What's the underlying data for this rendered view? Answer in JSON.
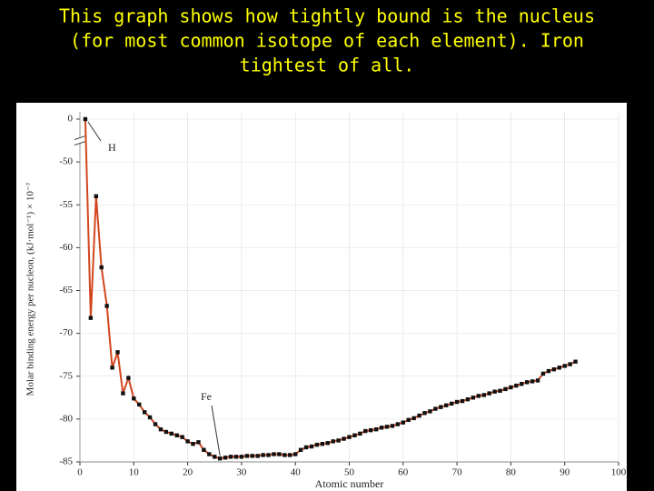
{
  "title_lines": [
    "This graph shows how tightly bound is the nucleus",
    "(for most common isotope of each element). Iron",
    "tightest of all."
  ],
  "chart_data": {
    "type": "line",
    "ylabel": "Molar binding energy per nucleon, (kJ·mol⁻¹) × 10⁻⁷",
    "xlabel": "Atomic number",
    "annotations": [
      "H",
      "Fe"
    ],
    "x": [
      1,
      2,
      3,
      4,
      5,
      6,
      7,
      8,
      9,
      10,
      11,
      12,
      13,
      14,
      15,
      16,
      17,
      18,
      19,
      20,
      21,
      22,
      23,
      24,
      25,
      26,
      27,
      28,
      29,
      30,
      31,
      32,
      33,
      34,
      35,
      36,
      37,
      38,
      39,
      40,
      41,
      42,
      43,
      44,
      45,
      46,
      47,
      48,
      49,
      50,
      51,
      52,
      53,
      54,
      55,
      56,
      57,
      58,
      59,
      60,
      61,
      62,
      63,
      64,
      65,
      66,
      67,
      68,
      69,
      70,
      71,
      72,
      73,
      74,
      75,
      76,
      77,
      78,
      79,
      80,
      81,
      82,
      83,
      84,
      85,
      86,
      87,
      88,
      89,
      90,
      91,
      92
    ],
    "values": [
      0,
      -68.2,
      -54,
      -62.3,
      -66.8,
      -74,
      -72.2,
      -77,
      -75.2,
      -77.6,
      -78.3,
      -79.2,
      -79.8,
      -80.6,
      -81.2,
      -81.5,
      -81.7,
      -81.9,
      -82.1,
      -82.6,
      -82.9,
      -82.7,
      -83.6,
      -84.1,
      -84.4,
      -84.6,
      -84.5,
      -84.4,
      -84.4,
      -84.4,
      -84.3,
      -84.3,
      -84.3,
      -84.2,
      -84.2,
      -84.1,
      -84.1,
      -84.2,
      -84.2,
      -84.1,
      -83.6,
      -83.3,
      -83.2,
      -83.0,
      -82.9,
      -82.8,
      -82.6,
      -82.5,
      -82.3,
      -82.1,
      -81.9,
      -81.7,
      -81.4,
      -81.3,
      -81.2,
      -81.0,
      -80.9,
      -80.8,
      -80.6,
      -80.4,
      -80.1,
      -79.9,
      -79.6,
      -79.3,
      -79.1,
      -78.8,
      -78.6,
      -78.4,
      -78.2,
      -78.0,
      -77.9,
      -77.7,
      -77.5,
      -77.3,
      -77.2,
      -77.0,
      -76.8,
      -76.7,
      -76.5,
      -76.3,
      -76.1,
      -75.9,
      -75.7,
      -75.6,
      -75.5,
      -74.7,
      -74.4,
      -74.2,
      -74.0,
      -73.8,
      -73.6,
      -73.3
    ],
    "color": "#d2461e",
    "marker_color": "#111111",
    "xlim": [
      0,
      100
    ],
    "xticks": [
      0,
      10,
      20,
      30,
      40,
      50,
      60,
      70,
      80,
      90,
      100
    ],
    "ylim": [
      -85,
      0
    ],
    "yticks": [
      0,
      -50,
      -55,
      -60,
      -65,
      -70,
      -75,
      -80,
      -85
    ],
    "axis_break": true,
    "grid": true
  }
}
